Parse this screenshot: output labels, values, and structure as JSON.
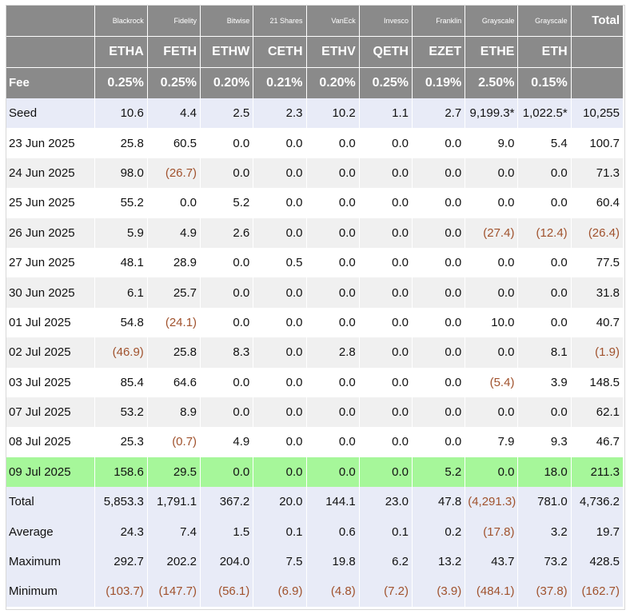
{
  "header": {
    "issuers": [
      "",
      "Blackrock",
      "Fidelity",
      "Bitwise",
      "21 Shares",
      "VanEck",
      "Invesco",
      "Franklin",
      "Grayscale",
      "Grayscale",
      "Total"
    ],
    "tickers": [
      "",
      "ETHA",
      "FETH",
      "ETHW",
      "CETH",
      "ETHV",
      "QETH",
      "EZET",
      "ETHE",
      "ETH",
      ""
    ],
    "fees": [
      "Fee",
      "0.25%",
      "0.25%",
      "0.20%",
      "0.21%",
      "0.20%",
      "0.25%",
      "0.19%",
      "2.50%",
      "0.15%",
      ""
    ]
  },
  "rows": [
    [
      "Seed",
      "10.6",
      "4.4",
      "2.5",
      "2.3",
      "10.2",
      "1.1",
      "2.7",
      "9,199.3*",
      "1,022.5*",
      "10,255"
    ],
    [
      "23 Jun 2025",
      "25.8",
      "60.5",
      "0.0",
      "0.0",
      "0.0",
      "0.0",
      "0.0",
      "9.0",
      "5.4",
      "100.7"
    ],
    [
      "24 Jun 2025",
      "98.0",
      "(26.7)",
      "0.0",
      "0.0",
      "0.0",
      "0.0",
      "0.0",
      "0.0",
      "0.0",
      "71.3"
    ],
    [
      "25 Jun 2025",
      "55.2",
      "0.0",
      "5.2",
      "0.0",
      "0.0",
      "0.0",
      "0.0",
      "0.0",
      "0.0",
      "60.4"
    ],
    [
      "26 Jun 2025",
      "5.9",
      "4.9",
      "2.6",
      "0.0",
      "0.0",
      "0.0",
      "0.0",
      "(27.4)",
      "(12.4)",
      "(26.4)"
    ],
    [
      "27 Jun 2025",
      "48.1",
      "28.9",
      "0.0",
      "0.5",
      "0.0",
      "0.0",
      "0.0",
      "0.0",
      "0.0",
      "77.5"
    ],
    [
      "30 Jun 2025",
      "6.1",
      "25.7",
      "0.0",
      "0.0",
      "0.0",
      "0.0",
      "0.0",
      "0.0",
      "0.0",
      "31.8"
    ],
    [
      "01 Jul 2025",
      "54.8",
      "(24.1)",
      "0.0",
      "0.0",
      "0.0",
      "0.0",
      "0.0",
      "10.0",
      "0.0",
      "40.7"
    ],
    [
      "02 Jul 2025",
      "(46.9)",
      "25.8",
      "8.3",
      "0.0",
      "2.8",
      "0.0",
      "0.0",
      "0.0",
      "8.1",
      "(1.9)"
    ],
    [
      "03 Jul 2025",
      "85.4",
      "64.6",
      "0.0",
      "0.0",
      "0.0",
      "0.0",
      "0.0",
      "(5.4)",
      "3.9",
      "148.5"
    ],
    [
      "07 Jul 2025",
      "53.2",
      "8.9",
      "0.0",
      "0.0",
      "0.0",
      "0.0",
      "0.0",
      "0.0",
      "0.0",
      "62.1"
    ],
    [
      "08 Jul 2025",
      "25.3",
      "(0.7)",
      "4.9",
      "0.0",
      "0.0",
      "0.0",
      "0.0",
      "7.9",
      "9.3",
      "46.7"
    ],
    [
      "09 Jul 2025",
      "158.6",
      "29.5",
      "0.0",
      "0.0",
      "0.0",
      "0.0",
      "5.2",
      "0.0",
      "18.0",
      "211.3"
    ]
  ],
  "summary": [
    [
      "Total",
      "5,853.3",
      "1,791.1",
      "367.2",
      "20.0",
      "144.1",
      "23.0",
      "47.8",
      "(4,291.3)",
      "781.0",
      "4,736.2"
    ],
    [
      "Average",
      "24.3",
      "7.4",
      "1.5",
      "0.1",
      "0.6",
      "0.1",
      "0.2",
      "(17.8)",
      "3.2",
      "19.7"
    ],
    [
      "Maximum",
      "292.7",
      "202.2",
      "204.0",
      "7.5",
      "19.8",
      "6.2",
      "13.2",
      "43.7",
      "73.2",
      "428.5"
    ],
    [
      "Minimum",
      "(103.7)",
      "(147.7)",
      "(56.1)",
      "(6.9)",
      "(4.8)",
      "(7.2)",
      "(3.9)",
      "(484.1)",
      "(37.8)",
      "(162.7)"
    ]
  ],
  "highlight_row": "09 Jul 2025"
}
